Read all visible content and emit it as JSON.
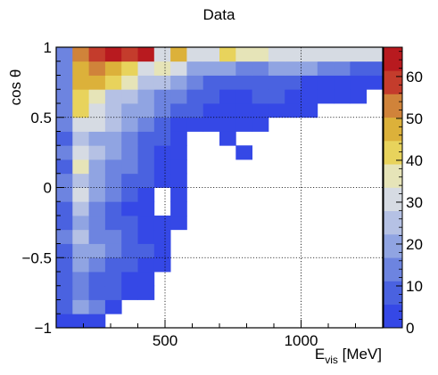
{
  "chart_data": {
    "type": "heatmap",
    "title": "Data",
    "xlabel": "E",
    "xlabel_sub": "vis",
    "xlabel_unit": "[MeV]",
    "ylabel": "cos θ",
    "xlim": [
      100,
      1300
    ],
    "ylim": [
      -1,
      1
    ],
    "grid": true,
    "x_ticks": [
      500,
      1000
    ],
    "y_ticks": [
      -1,
      -0.5,
      0,
      0.5,
      1
    ],
    "y_tick_labels": [
      "−1",
      "−0.5",
      "0",
      "0.5",
      "1"
    ],
    "zlim": [
      0,
      67
    ],
    "z_ticks": [
      0,
      10,
      20,
      30,
      40,
      50,
      60
    ],
    "colors": [
      "#3548e6",
      "#4a62e0",
      "#6d84e0",
      "#90a4e2",
      "#b5c1e4",
      "#d6dbe3",
      "#e6e4b8",
      "#e8d35c",
      "#dcb13a",
      "#d0833a",
      "#c43c2c",
      "#b81a1f"
    ],
    "x_bins": [
      100,
      160,
      220,
      280,
      340,
      400,
      460,
      520,
      580,
      640,
      700,
      760,
      820,
      880,
      940,
      1000,
      1060,
      1120,
      1180,
      1240,
      1300
    ],
    "y_bins": [
      -1.0,
      -0.9,
      -0.8,
      -0.7,
      -0.6,
      -0.5,
      -0.4,
      -0.3,
      -0.2,
      -0.1,
      0.0,
      0.1,
      0.2,
      0.3,
      0.4,
      0.5,
      0.6,
      0.7,
      0.8,
      0.9,
      1.0
    ],
    "z": [
      [
        5,
        3,
        2,
        0,
        0,
        0,
        0,
        0,
        0,
        0,
        0,
        0,
        0,
        0,
        0,
        0,
        0,
        0,
        0,
        0
      ],
      [
        8,
        22,
        12,
        4,
        0,
        0,
        0,
        0,
        0,
        0,
        0,
        0,
        0,
        0,
        0,
        0,
        0,
        0,
        0,
        0
      ],
      [
        6,
        12,
        10,
        8,
        4,
        3,
        0,
        0,
        0,
        0,
        0,
        0,
        0,
        0,
        0,
        0,
        0,
        0,
        0,
        0
      ],
      [
        7,
        14,
        11,
        9,
        5,
        3,
        0,
        0,
        0,
        0,
        0,
        0,
        0,
        0,
        0,
        0,
        0,
        0,
        0,
        0
      ],
      [
        9,
        18,
        12,
        10,
        6,
        4,
        3,
        0,
        0,
        0,
        0,
        0,
        0,
        0,
        0,
        0,
        0,
        0,
        0,
        0
      ],
      [
        10,
        22,
        18,
        12,
        8,
        6,
        3,
        0,
        0,
        0,
        0,
        0,
        0,
        0,
        0,
        0,
        0,
        0,
        0,
        0
      ],
      [
        12,
        26,
        16,
        12,
        8,
        5,
        4,
        0,
        0,
        0,
        0,
        0,
        0,
        0,
        0,
        0,
        0,
        0,
        0,
        0
      ],
      [
        10,
        20,
        14,
        8,
        6,
        4,
        3,
        4,
        0,
        0,
        0,
        0,
        0,
        0,
        0,
        0,
        0,
        0,
        0,
        0
      ],
      [
        9,
        24,
        16,
        10,
        5,
        3,
        0,
        3,
        0,
        0,
        0,
        0,
        0,
        0,
        0,
        0,
        0,
        0,
        0,
        0
      ],
      [
        14,
        28,
        18,
        12,
        6,
        4,
        0,
        4,
        0,
        0,
        0,
        0,
        0,
        0,
        0,
        0,
        0,
        0,
        0,
        0
      ],
      [
        12,
        24,
        20,
        13,
        8,
        6,
        4,
        3,
        0,
        0,
        0,
        0,
        0,
        0,
        0,
        0,
        0,
        0,
        0,
        0
      ],
      [
        11,
        36,
        20,
        16,
        12,
        6,
        4,
        3,
        0,
        0,
        0,
        0,
        0,
        0,
        0,
        0,
        0,
        0,
        0,
        0
      ],
      [
        13,
        30,
        25,
        18,
        14,
        8,
        5,
        3,
        0,
        0,
        0,
        3,
        0,
        0,
        0,
        0,
        0,
        0,
        0,
        0
      ],
      [
        10,
        26,
        22,
        19,
        16,
        10,
        6,
        4,
        0,
        0,
        3,
        0,
        0,
        0,
        0,
        0,
        0,
        0,
        0,
        0
      ],
      [
        12,
        28,
        32,
        24,
        20,
        14,
        8,
        4,
        5,
        3,
        3,
        3,
        3,
        0,
        0,
        0,
        0,
        0,
        0,
        0
      ],
      [
        14,
        40,
        30,
        26,
        22,
        17,
        12,
        8,
        6,
        4,
        3,
        3,
        3,
        4,
        4,
        3,
        0,
        0,
        0,
        0
      ],
      [
        16,
        44,
        36,
        26,
        26,
        20,
        14,
        12,
        8,
        6,
        4,
        5,
        6,
        8,
        4,
        4,
        3,
        3,
        3,
        0
      ],
      [
        15,
        48,
        46,
        44,
        36,
        27,
        24,
        18,
        14,
        10,
        8,
        6,
        6,
        10,
        6,
        4,
        3,
        3,
        3,
        3
      ],
      [
        12,
        50,
        52,
        48,
        40,
        30,
        35,
        28,
        22,
        20,
        18,
        14,
        12,
        18,
        22,
        20,
        14,
        12,
        10,
        8
      ],
      [
        14,
        52,
        58,
        66,
        60,
        62,
        30,
        46,
        28,
        30,
        44,
        34,
        34,
        28,
        30,
        28,
        28,
        30,
        30,
        28
      ]
    ]
  }
}
